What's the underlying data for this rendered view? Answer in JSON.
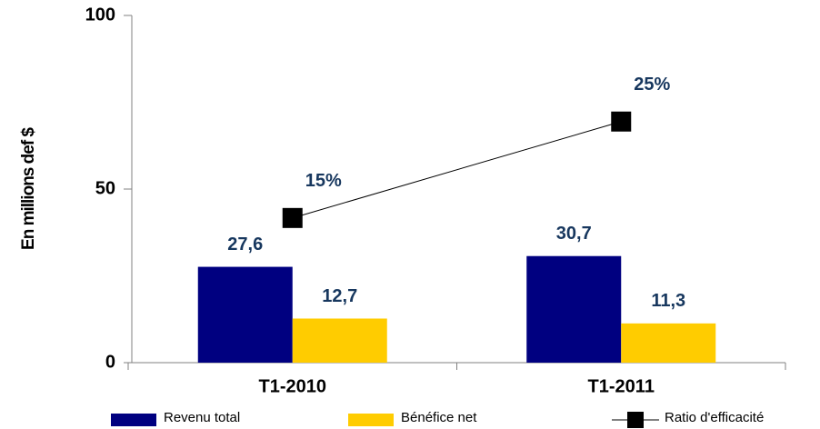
{
  "chart_data": {
    "type": "bar",
    "y_label": "En millions def $",
    "categories": [
      "T1-2010",
      "T1-2011"
    ],
    "series": [
      {
        "name": "Revenu total",
        "color": "#000080",
        "values": [
          27.6,
          30.7
        ],
        "value_labels": [
          "27,6",
          "30,7"
        ]
      },
      {
        "name": "Bénéfice net",
        "color": "#ffcc00",
        "values": [
          12.7,
          11.3
        ],
        "value_labels": [
          "12,7",
          "11,3"
        ]
      },
      {
        "name": "Ratio d'efficacité",
        "type": "line",
        "axis": "y2",
        "color": "#000000",
        "values": [
          15,
          25
        ],
        "value_labels": [
          "15%",
          "25%"
        ]
      }
    ],
    "ylim": [
      0,
      100
    ],
    "yticks": [
      0,
      50,
      100
    ],
    "y2lim": [
      0,
      36
    ],
    "legend": "bottom"
  }
}
